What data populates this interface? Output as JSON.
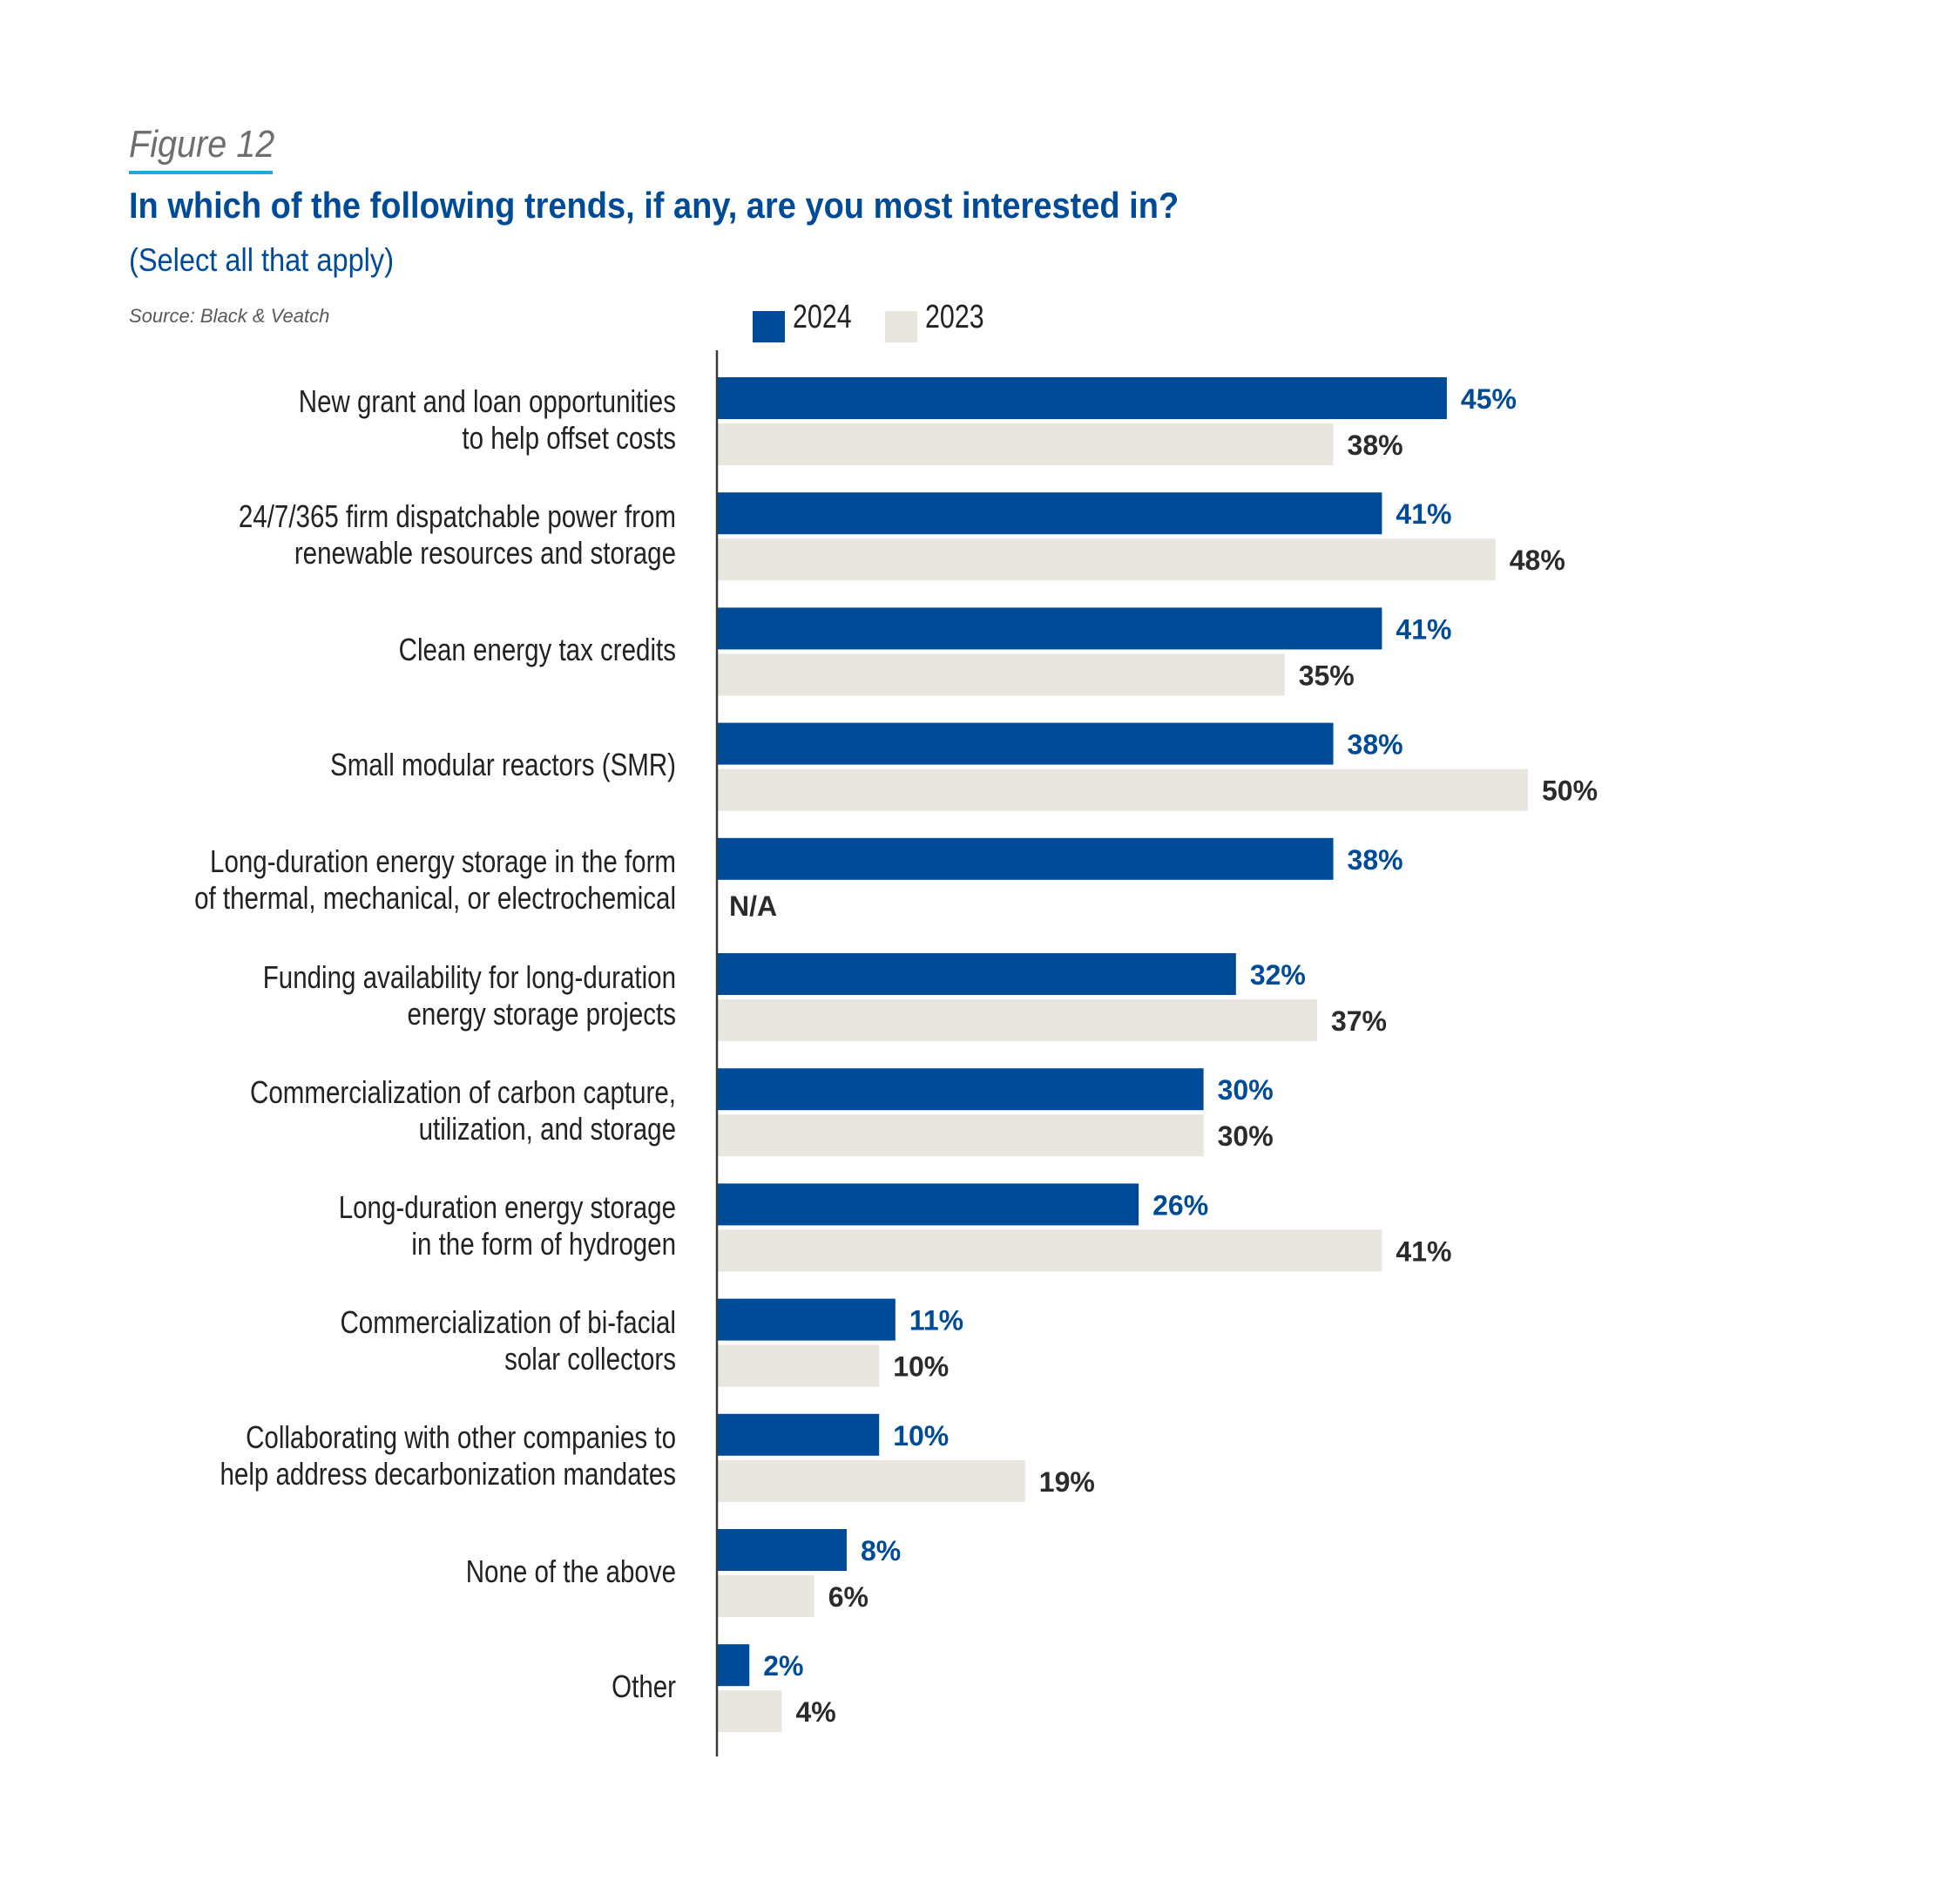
{
  "header": {
    "figure_label": "Figure 12",
    "title": "In which of the following trends, if any, are you most interested in?",
    "subtitle": "(Select all that apply)",
    "source": "Source: Black & Veatch"
  },
  "colors": {
    "series_2024": "#004b98",
    "series_2023": "#e8e6df",
    "value_2024": "#004b98",
    "value_2023": "#2b2b2b",
    "accent_underline": "#1ea7e1"
  },
  "chart_data": {
    "type": "bar",
    "orientation": "horizontal",
    "title": "In which of the following trends, if any, are you most interested in?",
    "subtitle": "(Select all that apply)",
    "xlabel": "",
    "ylabel": "",
    "xlim": [
      0,
      50
    ],
    "grid": false,
    "legend_position": "top",
    "value_format": "percent",
    "categories": [
      [
        "New grant and loan opportunities",
        "to help offset costs"
      ],
      [
        "24/7/365 firm dispatchable power from",
        "renewable resources and storage"
      ],
      [
        "Clean energy tax credits"
      ],
      [
        "Small modular reactors (SMR)"
      ],
      [
        "Long-duration energy storage in the form",
        "of thermal, mechanical, or electrochemical"
      ],
      [
        "Funding availability for long-duration",
        "energy storage projects"
      ],
      [
        "Commercialization of carbon capture,",
        "utilization, and storage"
      ],
      [
        "Long-duration energy storage",
        "in the form of hydrogen"
      ],
      [
        "Commercialization of bi-facial",
        "solar collectors"
      ],
      [
        "Collaborating with other companies to",
        "help address decarbonization mandates"
      ],
      [
        "None of the above"
      ],
      [
        "Other"
      ]
    ],
    "series": [
      {
        "name": "2024",
        "values": [
          45,
          41,
          41,
          38,
          38,
          32,
          30,
          26,
          11,
          10,
          8,
          2
        ],
        "labels": [
          "45%",
          "41%",
          "41%",
          "38%",
          "38%",
          "32%",
          "30%",
          "26%",
          "11%",
          "10%",
          "8%",
          "2%"
        ]
      },
      {
        "name": "2023",
        "values": [
          38,
          48,
          35,
          50,
          null,
          37,
          30,
          41,
          10,
          19,
          6,
          4
        ],
        "labels": [
          "38%",
          "48%",
          "35%",
          "50%",
          "N/A",
          "37%",
          "30%",
          "41%",
          "10%",
          "19%",
          "6%",
          "4%"
        ]
      }
    ]
  }
}
